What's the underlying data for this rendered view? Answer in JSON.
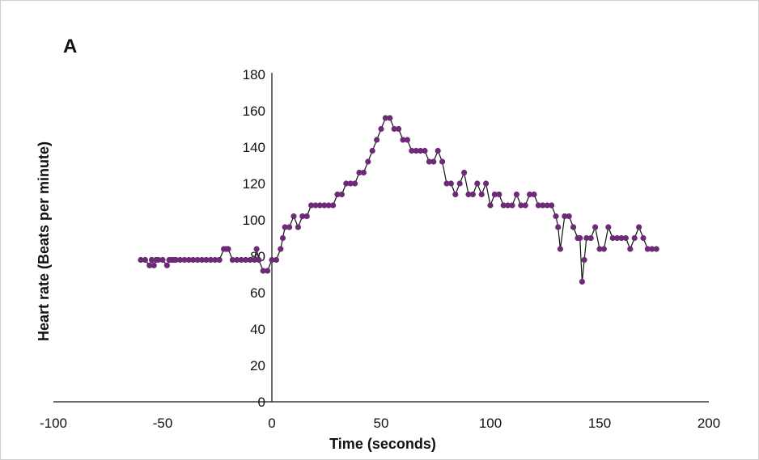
{
  "panel_label": "A",
  "chart_data": {
    "type": "line",
    "title": "",
    "xlabel": "Time (seconds)",
    "ylabel": "Heart rate (Beats per minute)",
    "xlim": [
      -100,
      200
    ],
    "ylim": [
      0,
      180
    ],
    "xticks": [
      -100,
      -50,
      0,
      50,
      100,
      150,
      200
    ],
    "yticks": [
      0,
      20,
      40,
      60,
      80,
      100,
      120,
      140,
      160,
      180
    ],
    "series_color": "#6d2a76",
    "line_color": "#111111",
    "series": [
      {
        "name": "Heart rate",
        "x": [
          -60,
          -58,
          -56,
          -55,
          -54,
          -53,
          -52,
          -50,
          -48,
          -47,
          -46,
          -45,
          -44,
          -42,
          -40,
          -38,
          -36,
          -34,
          -32,
          -30,
          -28,
          -26,
          -24,
          -22,
          -21,
          -20,
          -18,
          -16,
          -14,
          -12,
          -10,
          -8,
          -7,
          -6,
          -4,
          -2,
          0,
          2,
          4,
          5,
          6,
          8,
          10,
          12,
          14,
          16,
          18,
          20,
          22,
          24,
          26,
          28,
          30,
          32,
          34,
          36,
          38,
          40,
          42,
          44,
          46,
          48,
          50,
          52,
          54,
          56,
          58,
          60,
          62,
          64,
          66,
          68,
          70,
          72,
          74,
          76,
          78,
          80,
          82,
          84,
          86,
          88,
          90,
          92,
          94,
          96,
          98,
          100,
          102,
          104,
          106,
          108,
          110,
          112,
          114,
          116,
          118,
          120,
          122,
          124,
          126,
          128,
          130,
          131,
          132,
          134,
          136,
          138,
          140,
          141,
          142,
          143,
          144,
          146,
          148,
          150,
          152,
          154,
          156,
          158,
          160,
          162,
          164,
          166,
          168,
          170,
          172,
          174,
          176
        ],
        "values": [
          78,
          78,
          75,
          78,
          75,
          78,
          78,
          78,
          75,
          78,
          78,
          78,
          78,
          78,
          78,
          78,
          78,
          78,
          78,
          78,
          78,
          78,
          78,
          84,
          84,
          84,
          78,
          78,
          78,
          78,
          78,
          78,
          84,
          78,
          72,
          72,
          78,
          78,
          84,
          90,
          96,
          96,
          102,
          96,
          102,
          102,
          108,
          108,
          108,
          108,
          108,
          108,
          114,
          114,
          120,
          120,
          120,
          126,
          126,
          132,
          138,
          144,
          150,
          156,
          156,
          150,
          150,
          144,
          144,
          138,
          138,
          138,
          138,
          132,
          132,
          138,
          132,
          120,
          120,
          114,
          120,
          126,
          114,
          114,
          120,
          114,
          120,
          108,
          114,
          114,
          108,
          108,
          108,
          114,
          108,
          108,
          114,
          114,
          108,
          108,
          108,
          108,
          102,
          96,
          84,
          102,
          102,
          96,
          90,
          90,
          66,
          78,
          90,
          90,
          96,
          84,
          84,
          96,
          90,
          90,
          90,
          90,
          84,
          90,
          96,
          90,
          84,
          84,
          84
        ]
      }
    ]
  }
}
